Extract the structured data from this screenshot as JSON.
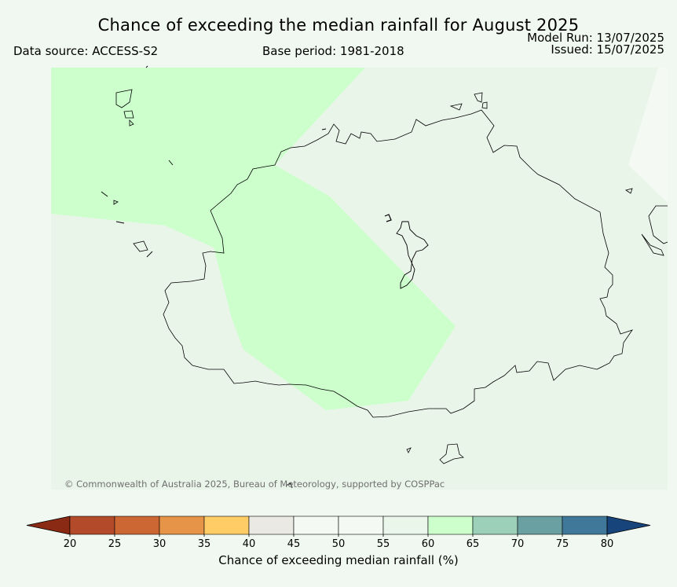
{
  "header": {
    "title": "Chance of exceeding the median rainfall for August 2025",
    "data_source": "Data source: ACCESS-S2",
    "base_period": "Base period: 1981-2018",
    "model_run": "Model Run: 13/07/2025",
    "issued": "Issued: 15/07/2025"
  },
  "map": {
    "copyright": "© Commonwealth of Australia 2025, Bureau of Meteorology, supported by COSPPac",
    "background_color": "#eaf5ea",
    "region_color": "#ccffcc",
    "region_category": "60-65"
  },
  "colorbar": {
    "label": "Chance of exceeding median rainfall (%)",
    "ticks": [
      "20",
      "25",
      "30",
      "35",
      "40",
      "45",
      "50",
      "55",
      "60",
      "65",
      "70",
      "75",
      "80"
    ],
    "colors": [
      "#8b2a14",
      "#b34a2a",
      "#cc6633",
      "#e69448",
      "#ffcc66",
      "#ebe9e4",
      "#f4f9f4",
      "#f4f9f4",
      "#e9f6e9",
      "#ccffcc",
      "#9dd0b8",
      "#6aa0a2",
      "#3f7899",
      "#17447a"
    ]
  }
}
